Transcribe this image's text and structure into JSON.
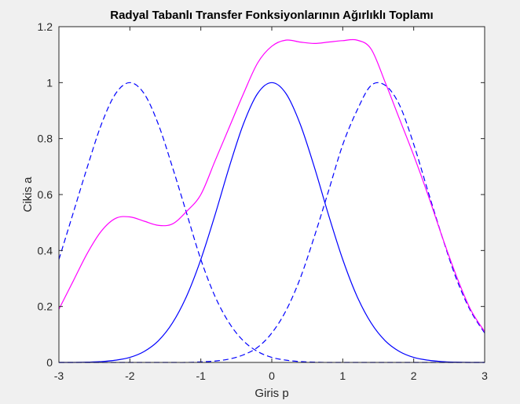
{
  "chart_data": {
    "type": "line",
    "title": "Radyal Tabanlı Transfer Fonksiyonlarının Ağırlıklı Toplamı",
    "xlabel": "Giris p",
    "ylabel": "Cikis a",
    "xlim": [
      -3,
      3
    ],
    "ylim": [
      0,
      1.2
    ],
    "xticks": [
      -3,
      -2,
      -1,
      0,
      1,
      2,
      3
    ],
    "xtick_labels": [
      "-3",
      "-2",
      "-1",
      "0",
      "1",
      "2",
      "3"
    ],
    "yticks": [
      0,
      0.2,
      0.4,
      0.6,
      0.8,
      1,
      1.2
    ],
    "ytick_labels": [
      "0",
      "0.2",
      "0.4",
      "0.6",
      "0.8",
      "1",
      "1.2"
    ],
    "grid": false,
    "x": [
      -3.0,
      -2.8,
      -2.6,
      -2.4,
      -2.2,
      -2.0,
      -1.8,
      -1.6,
      -1.4,
      -1.2,
      -1.0,
      -0.8,
      -0.6,
      -0.4,
      -0.2,
      0.0,
      0.2,
      0.4,
      0.6,
      0.8,
      1.0,
      1.2,
      1.4,
      1.6,
      1.8,
      2.0,
      2.2,
      2.4,
      2.6,
      2.8,
      3.0
    ],
    "series": [
      {
        "color": "#0000ff",
        "style": "dashed",
        "values": [
          0.368,
          0.533,
          0.698,
          0.852,
          0.961,
          1.0,
          0.961,
          0.852,
          0.698,
          0.533,
          0.368,
          0.236,
          0.141,
          0.077,
          0.039,
          0.018,
          0.008,
          0.003,
          0.001,
          0.0,
          0.0,
          0.0,
          0.0,
          0.0,
          0.0,
          0.0,
          0.0,
          0.0,
          0.0,
          0.0,
          0.0
        ]
      },
      {
        "color": "#0000ff",
        "style": "solid",
        "values": [
          0.0,
          0.0,
          0.001,
          0.003,
          0.008,
          0.018,
          0.039,
          0.077,
          0.141,
          0.237,
          0.368,
          0.527,
          0.698,
          0.852,
          0.961,
          1.0,
          0.961,
          0.852,
          0.698,
          0.527,
          0.368,
          0.237,
          0.141,
          0.077,
          0.039,
          0.018,
          0.008,
          0.003,
          0.001,
          0.0,
          0.0
        ]
      },
      {
        "color": "#0000ff",
        "style": "dashed",
        "values": [
          0.0,
          0.0,
          0.0,
          0.0,
          0.0,
          0.0,
          0.0,
          0.0,
          0.0,
          0.0,
          0.002,
          0.005,
          0.012,
          0.027,
          0.054,
          0.105,
          0.185,
          0.3,
          0.45,
          0.613,
          0.778,
          0.9,
          0.99,
          0.99,
          0.92,
          0.78,
          0.613,
          0.45,
          0.3,
          0.185,
          0.105
        ]
      },
      {
        "color": "#ff00ff",
        "style": "solid",
        "values": [
          0.19,
          0.29,
          0.39,
          0.47,
          0.515,
          0.52,
          0.505,
          0.49,
          0.495,
          0.54,
          0.6,
          0.72,
          0.84,
          0.96,
          1.07,
          1.13,
          1.152,
          1.145,
          1.14,
          1.145,
          1.15,
          1.152,
          1.12,
          1.0,
          0.87,
          0.74,
          0.6,
          0.45,
          0.31,
          0.19,
          0.11
        ]
      }
    ]
  }
}
